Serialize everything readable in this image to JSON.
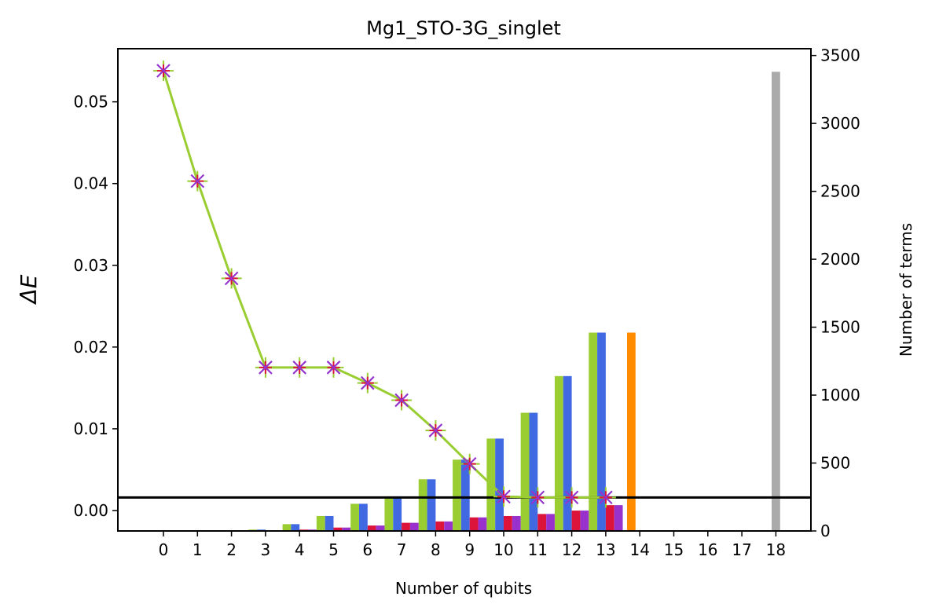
{
  "chart_data": {
    "type": "bar+line",
    "title": "Mg1_STO-3G_singlet",
    "xlabel": "Number of qubits",
    "ylabel_left": "ΔE",
    "ylabel_right": "Number of terms",
    "x_categories": [
      "0",
      "1",
      "2",
      "3",
      "4",
      "5",
      "6",
      "7",
      "8",
      "9",
      "10",
      "11",
      "12",
      "13",
      "14",
      "15",
      "16",
      "17",
      "18"
    ],
    "ylim_left": [
      -0.0025,
      0.0565
    ],
    "ylim_right": [
      0,
      3550
    ],
    "left_ticks": [
      "0.00",
      "0.01",
      "0.02",
      "0.03",
      "0.04",
      "0.05"
    ],
    "left_tick_values": [
      0,
      0.01,
      0.02,
      0.03,
      0.04,
      0.05
    ],
    "right_ticks": [
      "0",
      "500",
      "1000",
      "1500",
      "2000",
      "2500",
      "3000",
      "3500"
    ],
    "right_tick_values": [
      0,
      500,
      1000,
      1500,
      2000,
      2500,
      3000,
      3500
    ],
    "horizontal_line": {
      "value": 0.0016,
      "color": "#000000"
    },
    "colors": {
      "green": "#9acd32",
      "blue": "#4169e1",
      "red": "#dc143c",
      "purple": "#9932cc",
      "orange": "#ff8c00",
      "gray": "#aaaaaa"
    },
    "bar_series": [
      {
        "color": "green",
        "offset": -0.375,
        "values": [
          0,
          0,
          0,
          10,
          50,
          110,
          200,
          255,
          380,
          525,
          680,
          870,
          1140,
          1460
        ]
      },
      {
        "color": "blue",
        "offset": -0.125,
        "values": [
          0,
          0,
          0,
          10,
          50,
          110,
          200,
          255,
          380,
          525,
          680,
          870,
          1140,
          1460
        ]
      },
      {
        "color": "red",
        "offset": 0.125,
        "values": [
          0,
          0,
          0,
          0,
          10,
          25,
          40,
          60,
          70,
          100,
          110,
          125,
          150,
          190
        ]
      },
      {
        "color": "purple",
        "offset": 0.375,
        "values": [
          0,
          0,
          0,
          0,
          10,
          25,
          40,
          60,
          70,
          100,
          110,
          125,
          150,
          190
        ]
      }
    ],
    "special_bars": [
      {
        "color": "orange",
        "x": 13.75,
        "value": 1460
      },
      {
        "color": "gray",
        "x": 18,
        "value": 3380
      }
    ],
    "line_series": {
      "x": [
        0,
        1,
        2,
        3,
        4,
        5,
        6,
        7,
        8,
        9,
        10,
        11,
        12,
        13
      ],
      "y": [
        0.0538,
        0.0403,
        0.0284,
        0.0175,
        0.0175,
        0.0175,
        0.0156,
        0.0135,
        0.0098,
        0.0057,
        0.0017,
        0.0016,
        0.0016,
        0.0016
      ],
      "color": "green",
      "markers": [
        "green",
        "blue",
        "red",
        "purple"
      ]
    }
  }
}
